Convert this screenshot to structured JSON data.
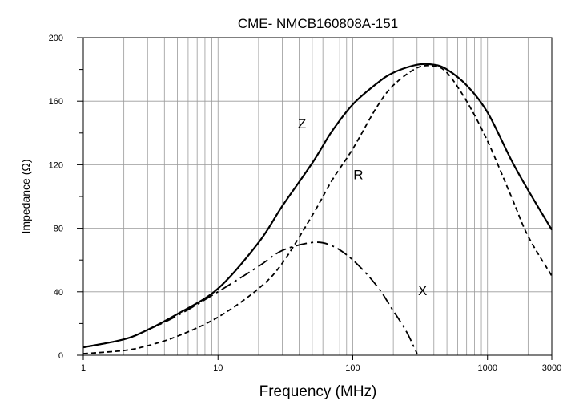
{
  "chart_data": {
    "type": "line",
    "title": "CME- NMCB160808A-151",
    "xlabel": "Frequency (MHz)",
    "ylabel": "Impedance (Ω)",
    "xscale": "log",
    "xlim": [
      1,
      3000
    ],
    "ylim": [
      0,
      200
    ],
    "grid": true,
    "x_ticks": [
      {
        "value": 1,
        "label": "1"
      },
      {
        "value": 10,
        "label": "10"
      },
      {
        "value": 100,
        "label": "100"
      },
      {
        "value": 1000,
        "label": "1000"
      },
      {
        "value": 3000,
        "label": "3000"
      }
    ],
    "y_ticks": [
      {
        "value": 0,
        "label": "0"
      },
      {
        "value": 40,
        "label": "40"
      },
      {
        "value": 80,
        "label": "80"
      },
      {
        "value": 120,
        "label": "120"
      },
      {
        "value": 160,
        "label": "160"
      },
      {
        "value": 200,
        "label": "200"
      }
    ],
    "series": [
      {
        "name": "Z",
        "style": "solid",
        "x": [
          1,
          2,
          3,
          5,
          10,
          20,
          30,
          50,
          70,
          100,
          150,
          200,
          300,
          400,
          500,
          700,
          1000,
          1500,
          2000,
          3000
        ],
        "y": [
          5,
          10,
          16,
          26,
          42,
          71,
          94,
          121,
          141,
          158,
          171,
          178,
          183,
          183,
          180,
          170,
          153,
          123,
          104,
          79
        ]
      },
      {
        "name": "R",
        "style": "dashed",
        "x": [
          1,
          2,
          3,
          5,
          10,
          20,
          30,
          50,
          70,
          100,
          150,
          200,
          300,
          400,
          500,
          700,
          1000,
          1500,
          2000,
          3000
        ],
        "y": [
          1,
          3,
          6,
          12,
          24,
          42,
          58,
          88,
          110,
          130,
          156,
          170,
          181,
          182,
          178,
          160,
          135,
          100,
          75,
          50
        ]
      },
      {
        "name": "X",
        "style": "dashdot",
        "x": [
          1,
          2,
          3,
          5,
          10,
          20,
          30,
          50,
          70,
          100,
          150,
          200,
          250,
          300
        ],
        "y": [
          5,
          10,
          16,
          25,
          40,
          56,
          66,
          71,
          69,
          60,
          44,
          28,
          15,
          1
        ]
      }
    ],
    "annotations": [
      {
        "text": "Z",
        "x": 42,
        "y": 146
      },
      {
        "text": "R",
        "x": 110,
        "y": 114
      },
      {
        "text": "X",
        "x": 330,
        "y": 41
      }
    ]
  }
}
